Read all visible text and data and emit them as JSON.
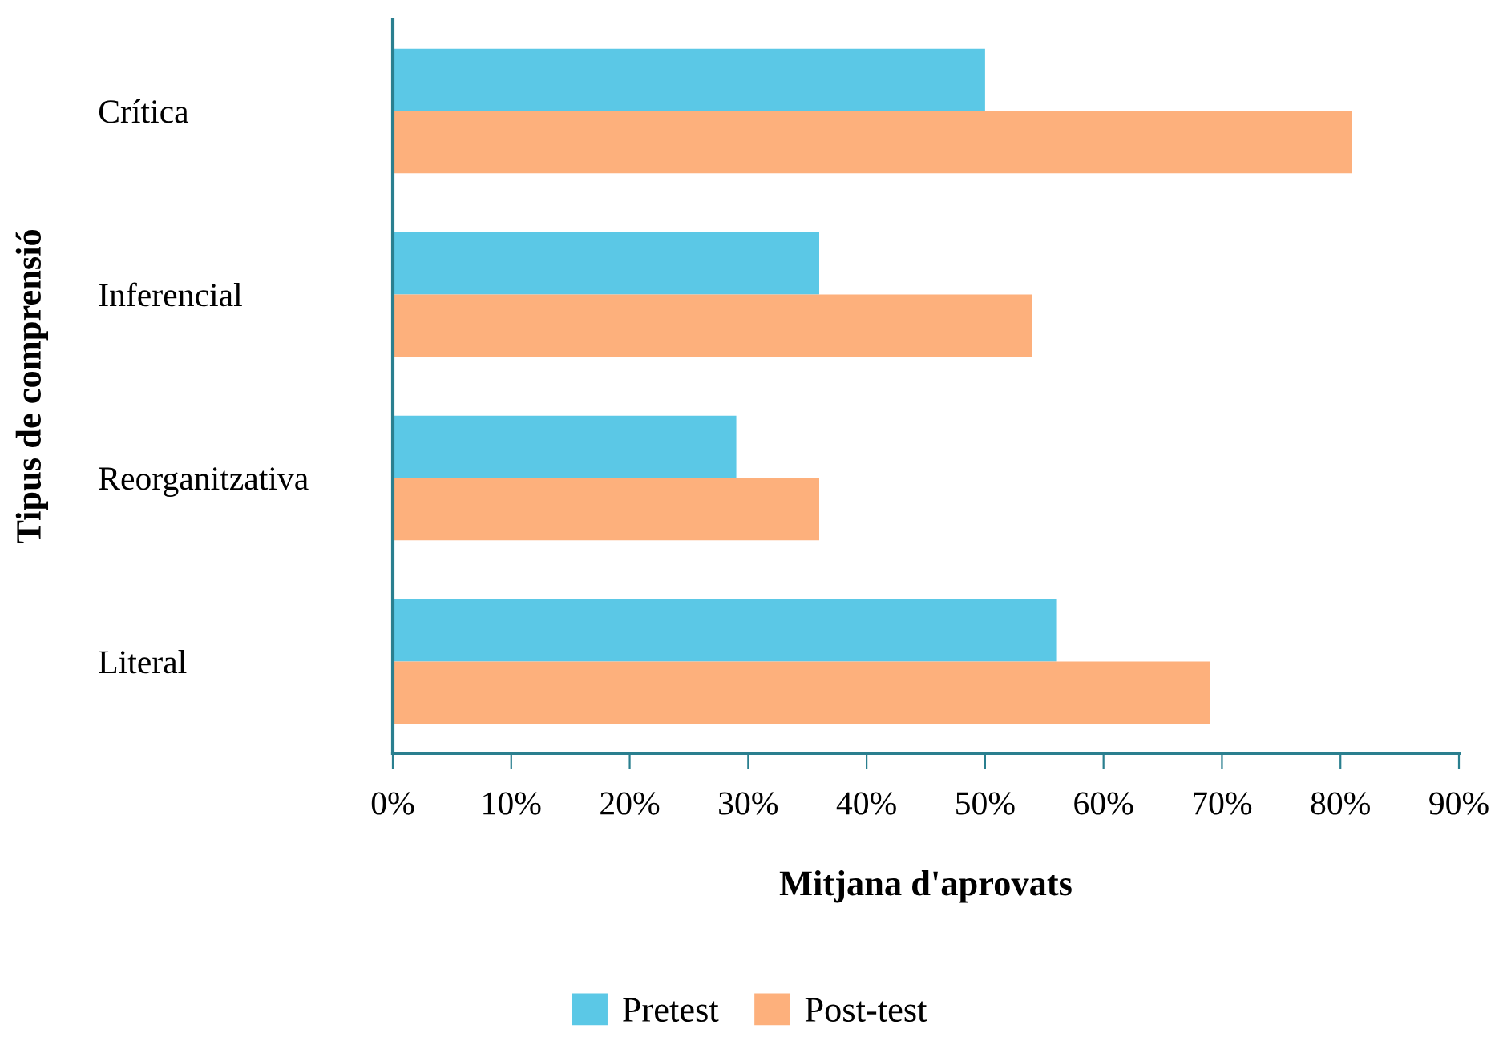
{
  "chart_data": {
    "type": "bar",
    "orientation": "horizontal",
    "xlabel": "Mitjana d'aprovats",
    "ylabel": "Tipus de comprensió",
    "categories": [
      "Crítica",
      "Inferencial",
      "Reorganitzativa",
      "Literal"
    ],
    "series": [
      {
        "name": "Pretest",
        "color": "#5bc8e6",
        "values": [
          50,
          36,
          29,
          56
        ]
      },
      {
        "name": "Post-test",
        "color": "#fdb07c",
        "values": [
          81,
          54,
          36,
          69
        ]
      }
    ],
    "xlim": [
      0,
      90
    ],
    "xticks": [
      {
        "value": 0,
        "label": "0%"
      },
      {
        "value": 10,
        "label": "10%"
      },
      {
        "value": 20,
        "label": "20%"
      },
      {
        "value": 30,
        "label": "30%"
      },
      {
        "value": 40,
        "label": "40%"
      },
      {
        "value": 50,
        "label": "50%"
      },
      {
        "value": 60,
        "label": "60%"
      },
      {
        "value": 70,
        "label": "70%"
      },
      {
        "value": 80,
        "label": "80%"
      },
      {
        "value": 90,
        "label": "90%"
      }
    ],
    "grid": false,
    "legend": "bottom"
  }
}
